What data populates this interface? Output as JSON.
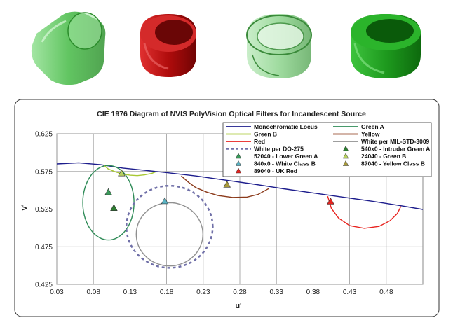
{
  "filters_illustration": {
    "items": [
      {
        "name": "green-filter-cap",
        "color": "#4cc24c"
      },
      {
        "name": "red-filter-ring",
        "color": "#c01010"
      },
      {
        "name": "clear-green-filter-ring",
        "color": "#5aaa5a"
      },
      {
        "name": "green-filter-ring",
        "color": "#1f9b1f"
      }
    ]
  },
  "chart_data": {
    "type": "scatter",
    "title": "CIE 1976 Diagram of NVIS PolyVision Optical Filters for Incandescent Source",
    "xlabel": "u'",
    "ylabel": "v'",
    "xlim": [
      0.03,
      0.53
    ],
    "ylim": [
      0.425,
      0.625
    ],
    "x_ticks": [
      "0.03",
      "0.08",
      "0.13",
      "0.18",
      "0.23",
      "0.28",
      "0.33",
      "0.38",
      "0.43",
      "0.48"
    ],
    "y_ticks": [
      "0.425",
      "0.475",
      "0.525",
      "0.575",
      "0.625"
    ],
    "grid": true,
    "legend_position": "top-right",
    "curves": [
      {
        "name": "Monochromatic Locus",
        "color": "#1c1c8c",
        "style": "solid",
        "points": [
          [
            0.03,
            0.585
          ],
          [
            0.06,
            0.5865
          ],
          [
            0.09,
            0.584
          ],
          [
            0.12,
            0.5795
          ],
          [
            0.15,
            0.5765
          ],
          [
            0.18,
            0.5735
          ],
          [
            0.22,
            0.569
          ],
          [
            0.26,
            0.5635
          ],
          [
            0.3,
            0.558
          ],
          [
            0.34,
            0.552
          ],
          [
            0.38,
            0.5465
          ],
          [
            0.42,
            0.541
          ],
          [
            0.46,
            0.5355
          ],
          [
            0.5,
            0.5295
          ],
          [
            0.53,
            0.5245
          ]
        ]
      },
      {
        "name": "Green A",
        "color": "#2e8b57",
        "style": "solid",
        "shape": "circle",
        "center": [
          0.1005,
          0.5335
        ],
        "radius_u": 0.035,
        "radius_v": 0.0495
      },
      {
        "name": "Green B",
        "color": "#a8c832",
        "style": "solid",
        "points": [
          [
            0.095,
            0.5825
          ],
          [
            0.1,
            0.5785
          ],
          [
            0.11,
            0.5745
          ],
          [
            0.12,
            0.5715
          ],
          [
            0.13,
            0.57
          ],
          [
            0.14,
            0.5695
          ],
          [
            0.15,
            0.5705
          ],
          [
            0.16,
            0.5725
          ],
          [
            0.165,
            0.5745
          ]
        ]
      },
      {
        "name": "Yellow",
        "color": "#8b3a1a",
        "style": "solid",
        "points": [
          [
            0.2,
            0.569
          ],
          [
            0.21,
            0.5605
          ],
          [
            0.22,
            0.5535
          ],
          [
            0.235,
            0.5475
          ],
          [
            0.25,
            0.543
          ],
          [
            0.27,
            0.5405
          ],
          [
            0.29,
            0.541
          ],
          [
            0.305,
            0.5445
          ],
          [
            0.32,
            0.5525
          ]
        ]
      },
      {
        "name": "Red",
        "color": "#e8231f",
        "style": "solid",
        "points": [
          [
            0.4,
            0.542
          ],
          [
            0.405,
            0.526
          ],
          [
            0.415,
            0.513
          ],
          [
            0.43,
            0.503
          ],
          [
            0.45,
            0.4995
          ],
          [
            0.47,
            0.502
          ],
          [
            0.485,
            0.5095
          ],
          [
            0.495,
            0.519
          ],
          [
            0.5,
            0.5285
          ]
        ]
      },
      {
        "name": "White per DO-275",
        "color": "#7070a8",
        "style": "dashed",
        "shape": "circle",
        "center": [
          0.184,
          0.5015
        ],
        "radius_u": 0.059,
        "radius_v": 0.0545
      },
      {
        "name": "White per MIL-STD-3009",
        "color": "#909090",
        "style": "solid",
        "shape": "circle",
        "center": [
          0.184,
          0.4915
        ],
        "radius_u": 0.0455,
        "radius_v": 0.042
      }
    ],
    "points": [
      {
        "name": "52040 - Lower Green A",
        "color": "#3a9a5a",
        "x": 0.1005,
        "y": 0.5475
      },
      {
        "name": "540x0 - Intruder Green A",
        "color": "#2e7d32",
        "x": 0.108,
        "y": 0.5265
      },
      {
        "name": "840x0 - White Class B",
        "color": "#5ab4c4",
        "x": 0.1775,
        "y": 0.5355
      },
      {
        "name": "24040 - Green B",
        "color": "#b8d060",
        "x": 0.1185,
        "y": 0.5725
      },
      {
        "name": "89040 - UK Red",
        "color": "#e8231f",
        "x": 0.404,
        "y": 0.535
      },
      {
        "name": "87040 - Yellow Class B",
        "color": "#a89a3a",
        "x": 0.2625,
        "y": 0.5575
      }
    ],
    "legend": [
      {
        "label": "Monochromatic Locus",
        "kind": "line",
        "color": "#1c1c8c"
      },
      {
        "label": "Green A",
        "kind": "line",
        "color": "#2e8b57"
      },
      {
        "label": "Green B",
        "kind": "line",
        "color": "#a8c832"
      },
      {
        "label": "Yellow",
        "kind": "line",
        "color": "#8b3a1a"
      },
      {
        "label": "Red",
        "kind": "line",
        "color": "#e8231f"
      },
      {
        "label": "White per MIL-STD-3009",
        "kind": "line",
        "color": "#909090"
      },
      {
        "label": "White per DO-275",
        "kind": "dash",
        "color": "#7070a8"
      },
      {
        "label": "540x0 - Intruder Green A",
        "kind": "triangle",
        "color": "#2e7d32"
      },
      {
        "label": "52040 - Lower Green A",
        "kind": "triangle",
        "color": "#3a9a5a"
      },
      {
        "label": "24040 - Green B",
        "kind": "triangle",
        "color": "#b8d060"
      },
      {
        "label": "840x0 - White Class B",
        "kind": "triangle",
        "color": "#5ab4c4"
      },
      {
        "label": "87040 - Yellow Class B",
        "kind": "triangle",
        "color": "#a89a3a"
      },
      {
        "label": "89040 - UK Red",
        "kind": "triangle",
        "color": "#e8231f"
      }
    ]
  }
}
